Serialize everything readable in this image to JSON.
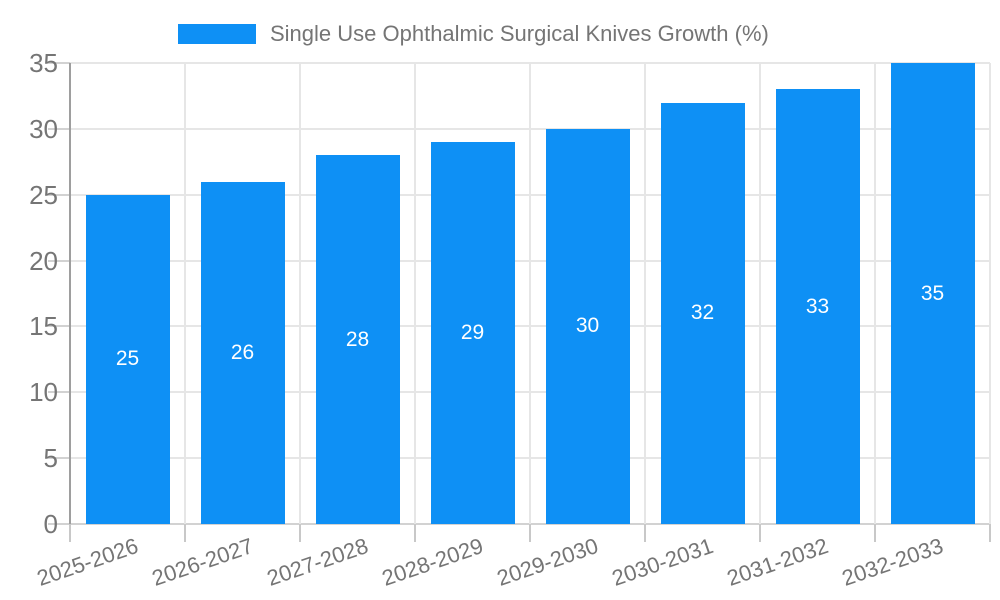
{
  "chart": {
    "legend": {
      "label": "Single Use Ophthalmic Surgical Knives Growth (%)"
    }
  },
  "chart_data": {
    "type": "bar",
    "title": "Single Use Ophthalmic Surgical Knives Growth (%)",
    "series_name": "Single Use Ophthalmic Surgical Knives Growth (%)",
    "categories": [
      "2025-2026",
      "2026-2027",
      "2027-2028",
      "2028-2029",
      "2029-2030",
      "2030-2031",
      "2031-2032",
      "2032-2033"
    ],
    "values": [
      25,
      26,
      28,
      29,
      30,
      32,
      33,
      35
    ],
    "value_labels": [
      "25",
      "26",
      "28",
      "29",
      "30",
      "32",
      "33",
      "35"
    ],
    "yticks": [
      0,
      5,
      10,
      15,
      20,
      25,
      30,
      35
    ],
    "ylim": [
      0,
      35
    ],
    "xlabel": "",
    "ylabel": "",
    "grid": true,
    "legend_position": "top"
  },
  "colors": {
    "bar": "#0e90f5",
    "value_label": "#ffffff",
    "axis_text": "#757575",
    "grid": "#e6e6e6",
    "axis_line": "#9e9e9e",
    "tick": "#c8c8c8",
    "background": "#ffffff"
  }
}
